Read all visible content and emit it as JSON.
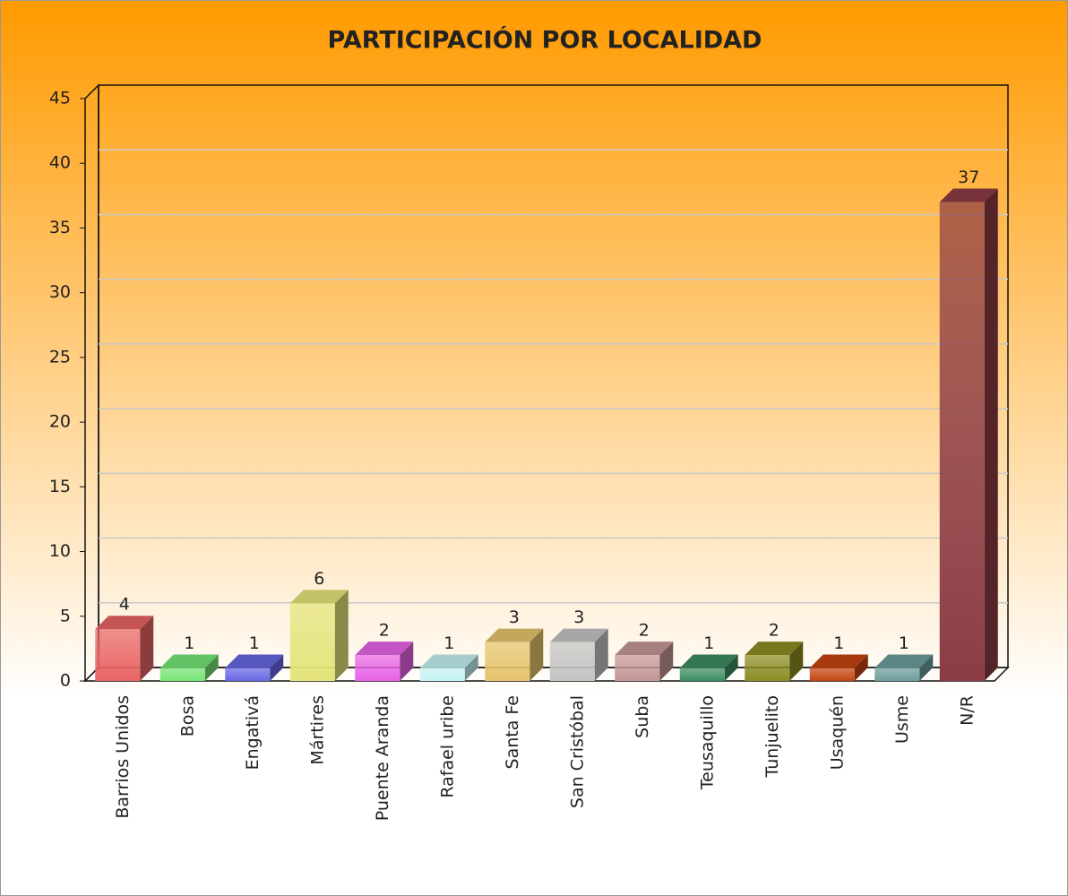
{
  "chart_data": {
    "type": "bar3d",
    "title": "PARTICIPACIÓN POR LOCALIDAD",
    "categories": [
      "Barrios Unidos",
      "Bosa",
      "Engativá",
      "Mártires",
      "Puente Aranda",
      "Rafael uribe",
      "Santa Fe",
      "San Cristóbal",
      "Suba",
      "Teusaquillo",
      "Tunjuelito",
      "Usaquén",
      "Usme",
      "N/R"
    ],
    "values": [
      4,
      1,
      1,
      6,
      2,
      1,
      3,
      3,
      2,
      1,
      2,
      1,
      1,
      37
    ],
    "colors": [
      "#e86464",
      "#74e474",
      "#6666e4",
      "#e4e47a",
      "#e664e6",
      "#c4f2f2",
      "#e6c46c",
      "#c4c4c4",
      "#c49696",
      "#3c8c62",
      "#8c8c22",
      "#c44412",
      "#6c9c9c",
      "#8c3c44"
    ],
    "ylim": [
      0,
      45
    ],
    "yticks": [
      0,
      5,
      10,
      15,
      20,
      25,
      30,
      35,
      40,
      45
    ],
    "grid": true
  }
}
